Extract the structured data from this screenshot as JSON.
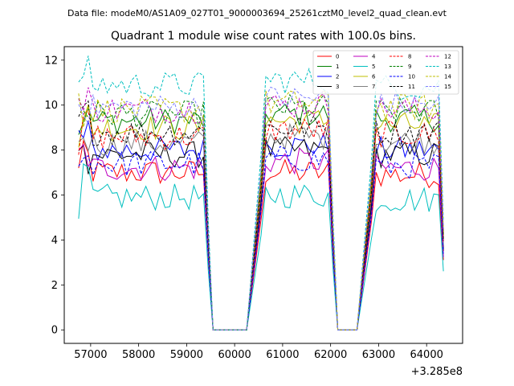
{
  "figure": {
    "suptitle": "Data file: modeM0/AS1A09_027T01_9000003694_25261cztM0_level2_quad_clean.evt",
    "title": "Quadrant 1 module wise count rates with 100.0s bins.",
    "x_offset_label": "+3.285e8"
  },
  "chart_data": {
    "type": "line",
    "title": "Quadrant 1 module wise count rates with 100.0s bins.",
    "xlabel": "",
    "ylabel": "",
    "x_offset": 328500000,
    "xlim": [
      56450,
      64750
    ],
    "ylim": [
      -0.6,
      12.6
    ],
    "xticks": [
      57000,
      58000,
      59000,
      60000,
      61000,
      62000,
      63000,
      64000
    ],
    "xtick_labels": [
      "57000",
      "58000",
      "59000",
      "60000",
      "61000",
      "62000",
      "63000",
      "64000"
    ],
    "yticks": [
      0,
      2,
      4,
      6,
      8,
      10,
      12
    ],
    "ytick_labels": [
      "0",
      "2",
      "4",
      "6",
      "8",
      "10",
      "12"
    ],
    "grid": false,
    "legend_position": "top-right",
    "segments": [
      {
        "start": 56750,
        "end": 59450,
        "step": 100
      },
      {
        "start": 60550,
        "end": 62050,
        "step": 100
      },
      {
        "start": 62850,
        "end": 64350,
        "step": 100
      }
    ],
    "series": [
      {
        "name": "0",
        "color": "#ff0000",
        "dash": "solid",
        "levels": [
          7.0,
          7.0,
          6.9
        ]
      },
      {
        "name": "1",
        "color": "#008000",
        "dash": "solid",
        "levels": [
          9.3,
          9.6,
          9.4
        ]
      },
      {
        "name": "2",
        "color": "#0000ff",
        "dash": "solid",
        "levels": [
          8.0,
          8.2,
          8.0
        ]
      },
      {
        "name": "3",
        "color": "#000000",
        "dash": "solid",
        "levels": [
          7.8,
          8.0,
          7.8
        ]
      },
      {
        "name": "4",
        "color": "#bf00bf",
        "dash": "solid",
        "levels": [
          7.2,
          7.5,
          7.2
        ]
      },
      {
        "name": "5",
        "color": "#00bfbf",
        "dash": "solid",
        "levels": [
          5.9,
          6.0,
          5.8
        ]
      },
      {
        "name": "6",
        "color": "#bfbf00",
        "dash": "solid",
        "levels": [
          9.0,
          9.3,
          9.1
        ]
      },
      {
        "name": "7",
        "color": "#808080",
        "dash": "solid",
        "levels": [
          8.3,
          8.6,
          8.4
        ]
      },
      {
        "name": "8",
        "color": "#ff0000",
        "dash": "dashed",
        "levels": [
          8.6,
          8.9,
          8.7
        ]
      },
      {
        "name": "9",
        "color": "#008000",
        "dash": "dashed",
        "levels": [
          9.6,
          9.9,
          9.7
        ]
      },
      {
        "name": "10",
        "color": "#0000ff",
        "dash": "dashed",
        "levels": [
          7.4,
          7.6,
          7.3
        ]
      },
      {
        "name": "11",
        "color": "#000000",
        "dash": "dashed",
        "levels": [
          8.8,
          9.0,
          8.8
        ]
      },
      {
        "name": "12",
        "color": "#bf00bf",
        "dash": "dashed",
        "levels": [
          9.8,
          10.0,
          9.8
        ]
      },
      {
        "name": "13",
        "color": "#00bfbf",
        "dash": "dashed",
        "levels": [
          10.9,
          11.1,
          10.8
        ]
      },
      {
        "name": "14",
        "color": "#bfbf00",
        "dash": "dashed",
        "levels": [
          9.8,
          10.1,
          9.9
        ]
      },
      {
        "name": "15",
        "color": "#8080ff",
        "dash": "dashed",
        "levels": [
          9.9,
          10.3,
          10.0
        ]
      }
    ]
  }
}
